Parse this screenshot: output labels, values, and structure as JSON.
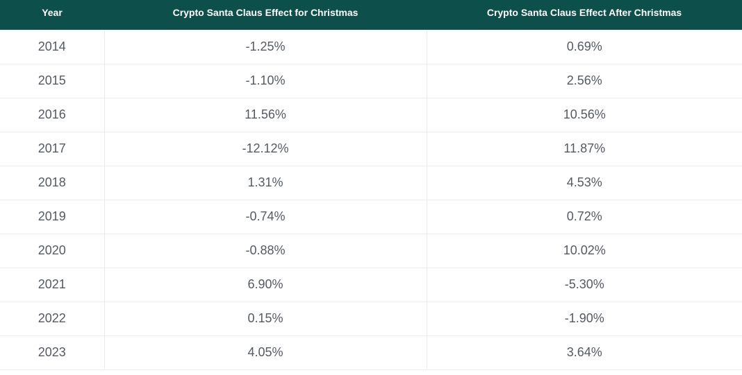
{
  "table": {
    "columns": [
      "Year",
      "Crypto Santa Claus Effect for Christmas",
      "Crypto Santa Claus Effect After Christmas"
    ],
    "rows": [
      [
        "2014",
        "-1.25%",
        "0.69%"
      ],
      [
        "2015",
        "-1.10%",
        "2.56%"
      ],
      [
        "2016",
        "11.56%",
        "10.56%"
      ],
      [
        "2017",
        "-12.12%",
        "11.87%"
      ],
      [
        "2018",
        "1.31%",
        "4.53%"
      ],
      [
        "2019",
        "-0.74%",
        "0.72%"
      ],
      [
        "2020",
        "-0.88%",
        "10.02%"
      ],
      [
        "2021",
        "6.90%",
        "-5.30%"
      ],
      [
        "2022",
        "0.15%",
        "-1.90%"
      ],
      [
        "2023",
        "4.05%",
        "3.64%"
      ]
    ]
  }
}
